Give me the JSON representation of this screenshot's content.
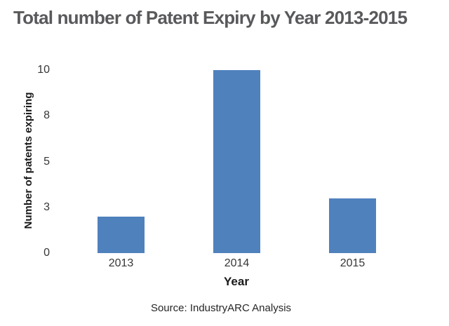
{
  "page": {
    "title": "Total number of Patent Expiry by Year 2013-2015",
    "source_note": "Source: IndustryARC Analysis"
  },
  "chart_data": {
    "type": "bar",
    "title": "Total number of Patent Expiry by Year 2013-2015",
    "categories": [
      "2013",
      "2014",
      "2015"
    ],
    "values": [
      2,
      10,
      3
    ],
    "xlabel": "Year",
    "ylabel": "Number of patents expiring",
    "ylim": [
      0,
      10
    ],
    "ytick_values": [
      0,
      2.5,
      5,
      7.5,
      10
    ],
    "ytick_labels": [
      "0",
      "3",
      "5",
      "8",
      "10"
    ],
    "grid": false,
    "legend": false,
    "axis_lines": false,
    "bar_color": "#4f81bd",
    "source": "Source: IndustryARC Analysis"
  },
  "colors": {
    "title_text": "#58595b",
    "axis_text": "#363636",
    "axis_title_text": "#1a1a1a",
    "bar": "#4f81bd",
    "background": "#ffffff"
  }
}
